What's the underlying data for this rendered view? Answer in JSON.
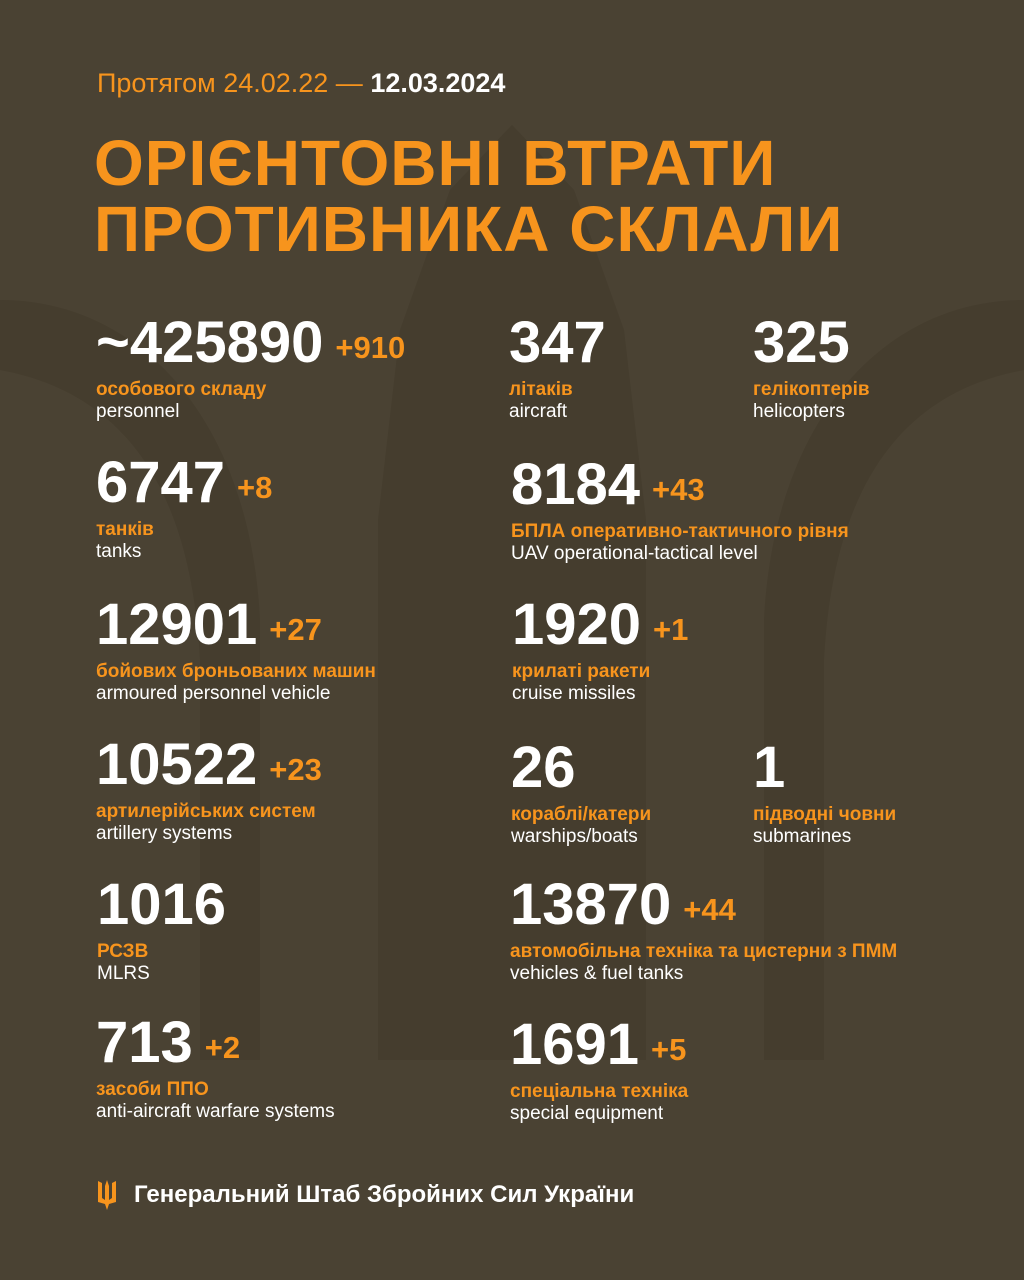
{
  "header": {
    "prefix": "Протягом",
    "range_start": "24.02.22 —",
    "range_end": "12.03.2024",
    "title_line1": "ОРІЄНТОВНІ ВТРАТИ",
    "title_line2": "ПРОТИВНИКА СКЛАЛИ"
  },
  "colors": {
    "accent": "#f7941d",
    "background": "#4a4233",
    "text": "#ffffff"
  },
  "items": {
    "personnel": {
      "value": "~425890",
      "delta": "+910",
      "ua": "особового складу",
      "en": "personnel"
    },
    "aircraft": {
      "value": "347",
      "ua": "літаків",
      "en": "aircraft"
    },
    "helicopters": {
      "value": "325",
      "ua": "гелікоптерів",
      "en": "helicopters"
    },
    "tanks": {
      "value": "6747",
      "delta": "+8",
      "ua": "танків",
      "en": "tanks"
    },
    "uav": {
      "value": "8184",
      "delta": "+43",
      "ua": "БПЛА оперативно-тактичного рівня",
      "en": "UAV operational-tactical level"
    },
    "apv": {
      "value": "12901",
      "delta": "+27",
      "ua": "бойових броньованих машин",
      "en": "armoured personnel vehicle"
    },
    "cruise": {
      "value": "1920",
      "delta": "+1",
      "ua": "крилаті ракети",
      "en": "cruise missiles"
    },
    "artillery": {
      "value": "10522",
      "delta": "+23",
      "ua": "артилерійських систем",
      "en": "artillery systems"
    },
    "warships": {
      "value": "26",
      "ua": "кораблі/катери",
      "en": "warships/boats"
    },
    "submarines": {
      "value": "1",
      "ua": "підводні човни",
      "en": "submarines"
    },
    "mlrs": {
      "value": "1016",
      "ua": "РСЗВ",
      "en": "MLRS"
    },
    "vehicles": {
      "value": "13870",
      "delta": "+44",
      "ua": "автомобільна техніка та цистерни з ПММ",
      "en": "vehicles & fuel tanks"
    },
    "aaws": {
      "value": "713",
      "delta": "+2",
      "ua": "засоби ППО",
      "en": "anti-aircraft warfare systems"
    },
    "special": {
      "value": "1691",
      "delta": "+5",
      "ua": "спеціальна техніка",
      "en": "special equipment"
    }
  },
  "footer": {
    "icon": "trident-icon",
    "text": "Генеральний Штаб Збройних Сил України"
  }
}
